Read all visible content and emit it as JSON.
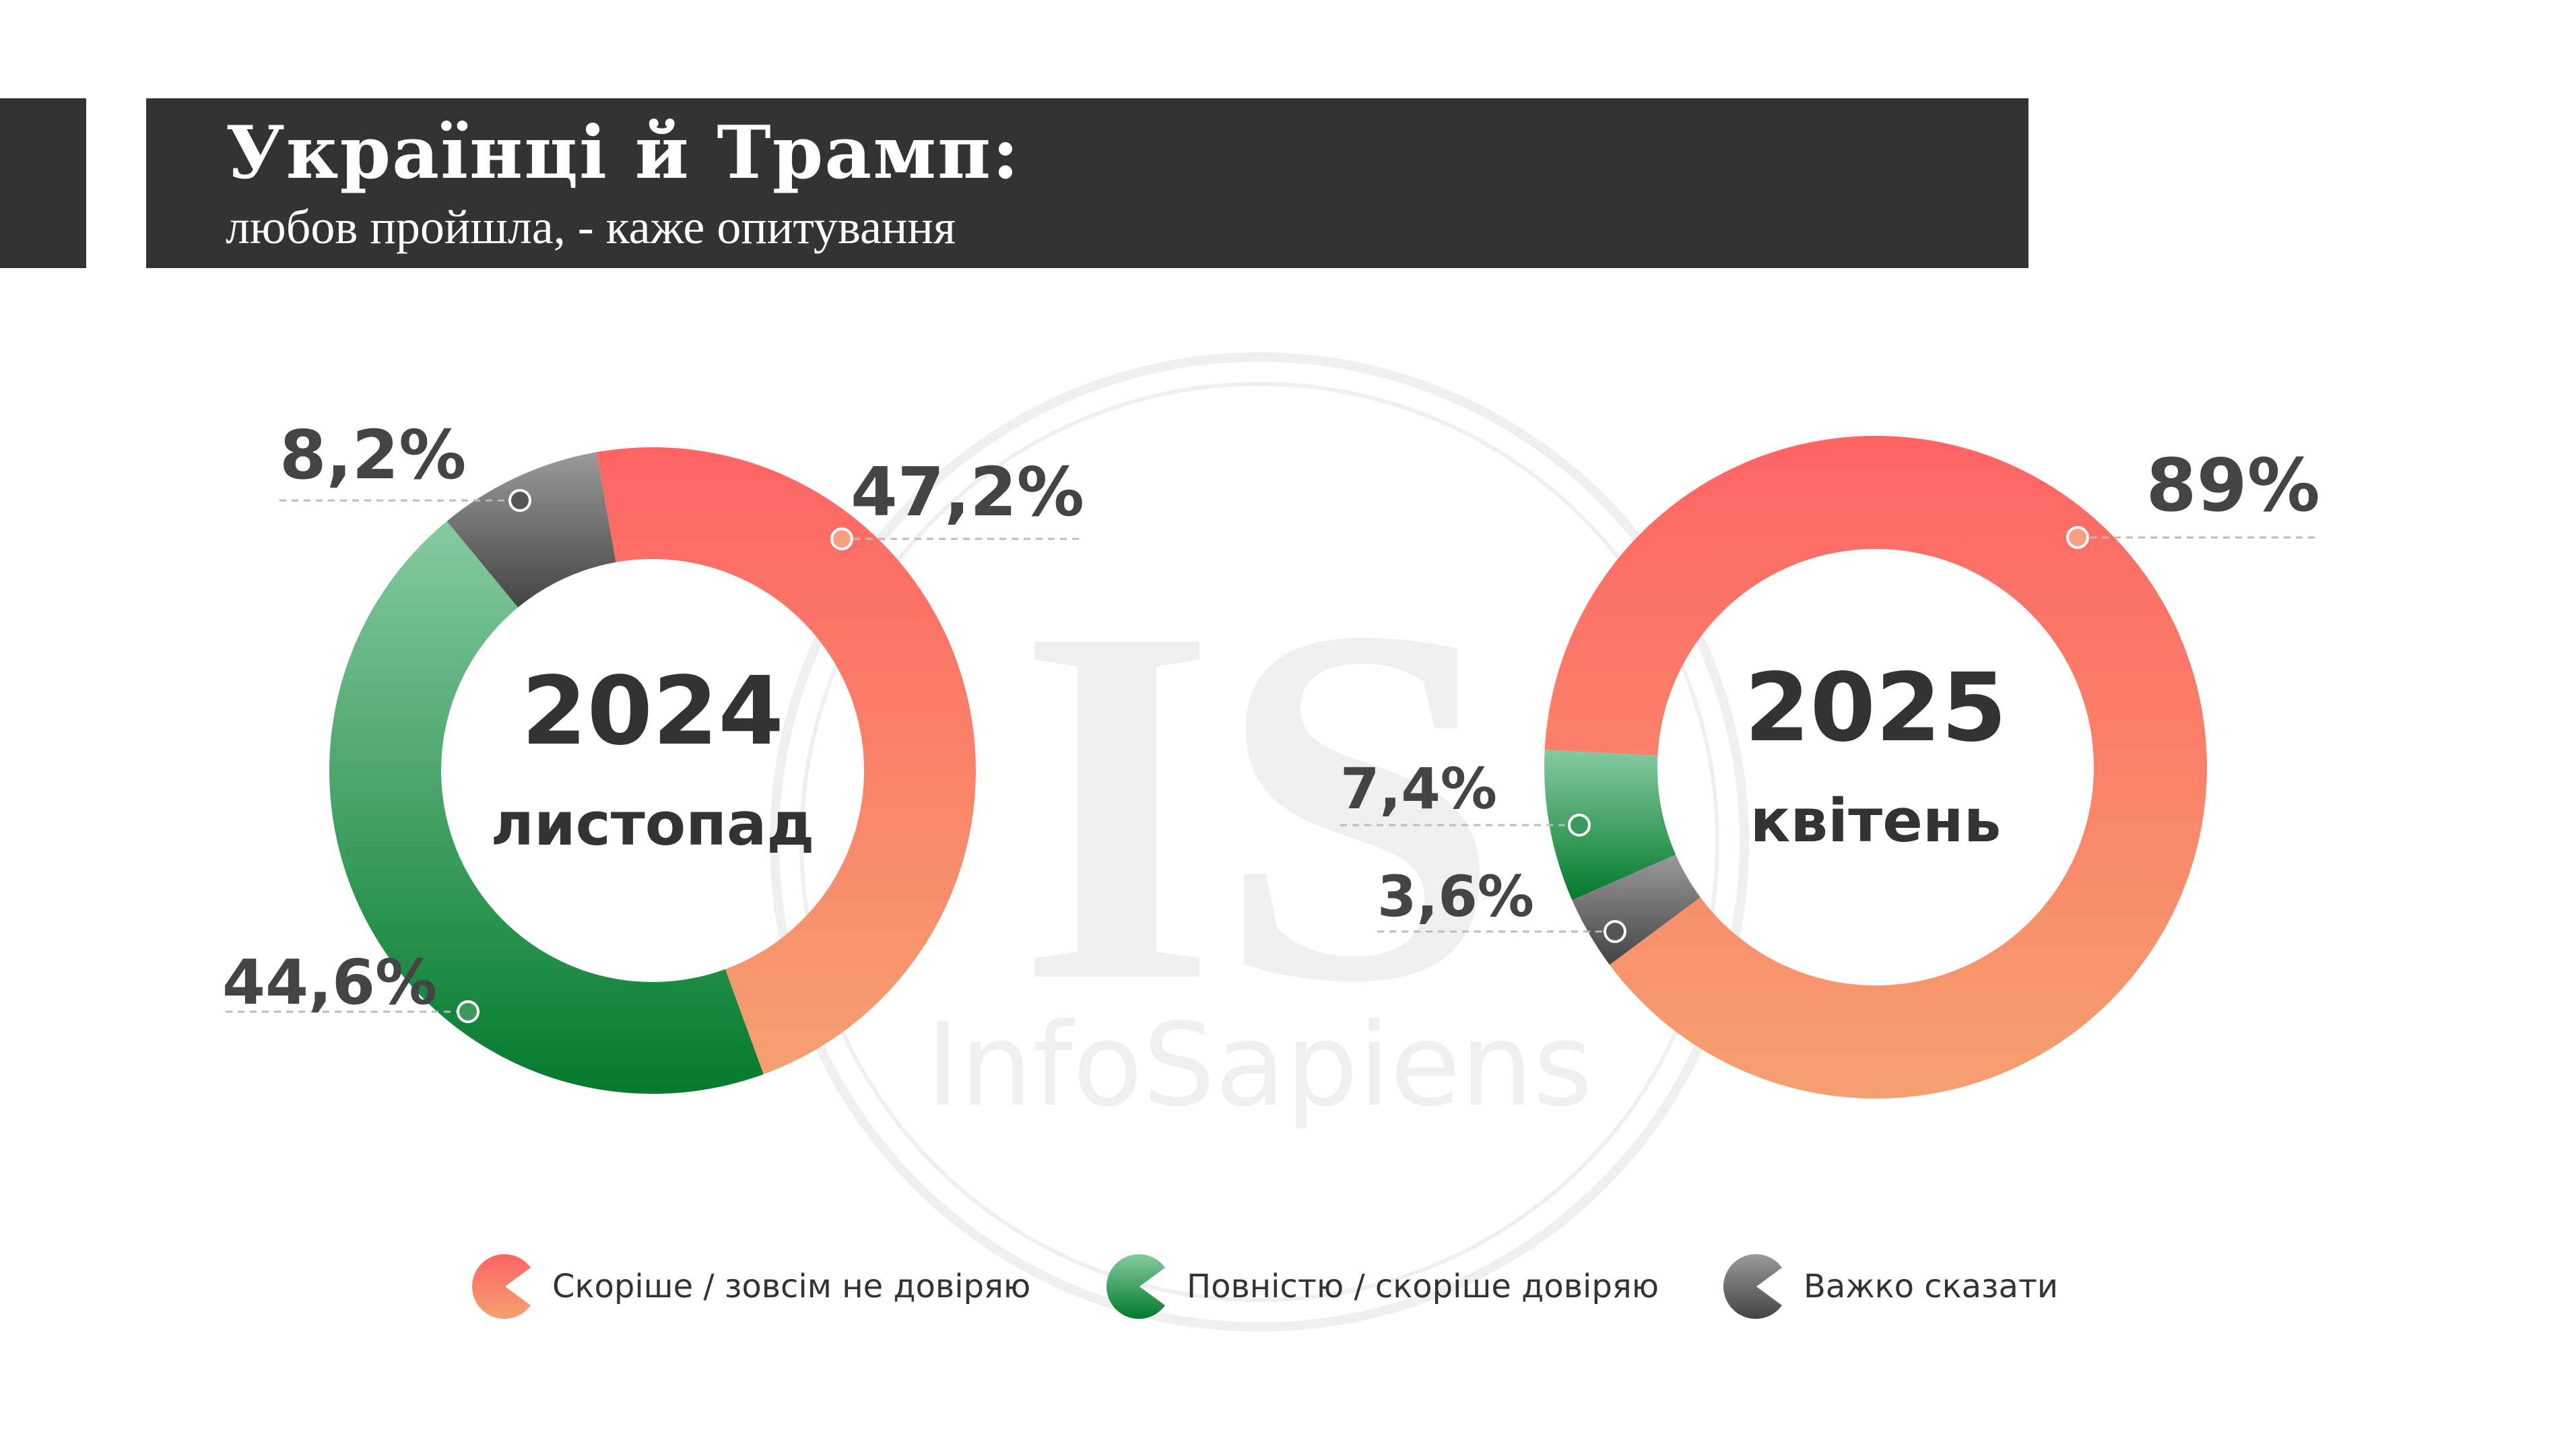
{
  "header": {
    "title": "Українці й Трамп:",
    "subtitle": "любов пройшла, - каже опитування"
  },
  "watermark": {
    "logo": "IS",
    "name": "InfoSapiens"
  },
  "colors": {
    "distrust": [
      "#ff6464",
      "#f5a070"
    ],
    "trust": [
      "#86caa0",
      "#037a2c"
    ],
    "hard_to_say": [
      "#9a9a9a",
      "#444444"
    ]
  },
  "chart_data": [
    {
      "type": "pie",
      "title": "2024",
      "subtitle": "листопад",
      "categories": [
        "Скоріше / зовсім не довіряю",
        "Повністю / скоріше довіряю",
        "Важко сказати"
      ],
      "values": [
        47.2,
        44.6,
        8.2
      ],
      "labels": [
        "47,2%",
        "44,6%",
        "8,2%"
      ]
    },
    {
      "type": "pie",
      "title": "2025",
      "subtitle": "квітень",
      "categories": [
        "Скоріше / зовсім не довіряю",
        "Повністю / скоріше довіряю",
        "Важко сказати"
      ],
      "values": [
        89,
        7.4,
        3.6
      ],
      "labels": [
        "89%",
        "7,4%",
        "3,6%"
      ]
    }
  ],
  "legend": [
    {
      "label": "Скоріше / зовсім не довіряю"
    },
    {
      "label": "Повністю / скоріше довіряю"
    },
    {
      "label": "Важко сказати"
    }
  ]
}
